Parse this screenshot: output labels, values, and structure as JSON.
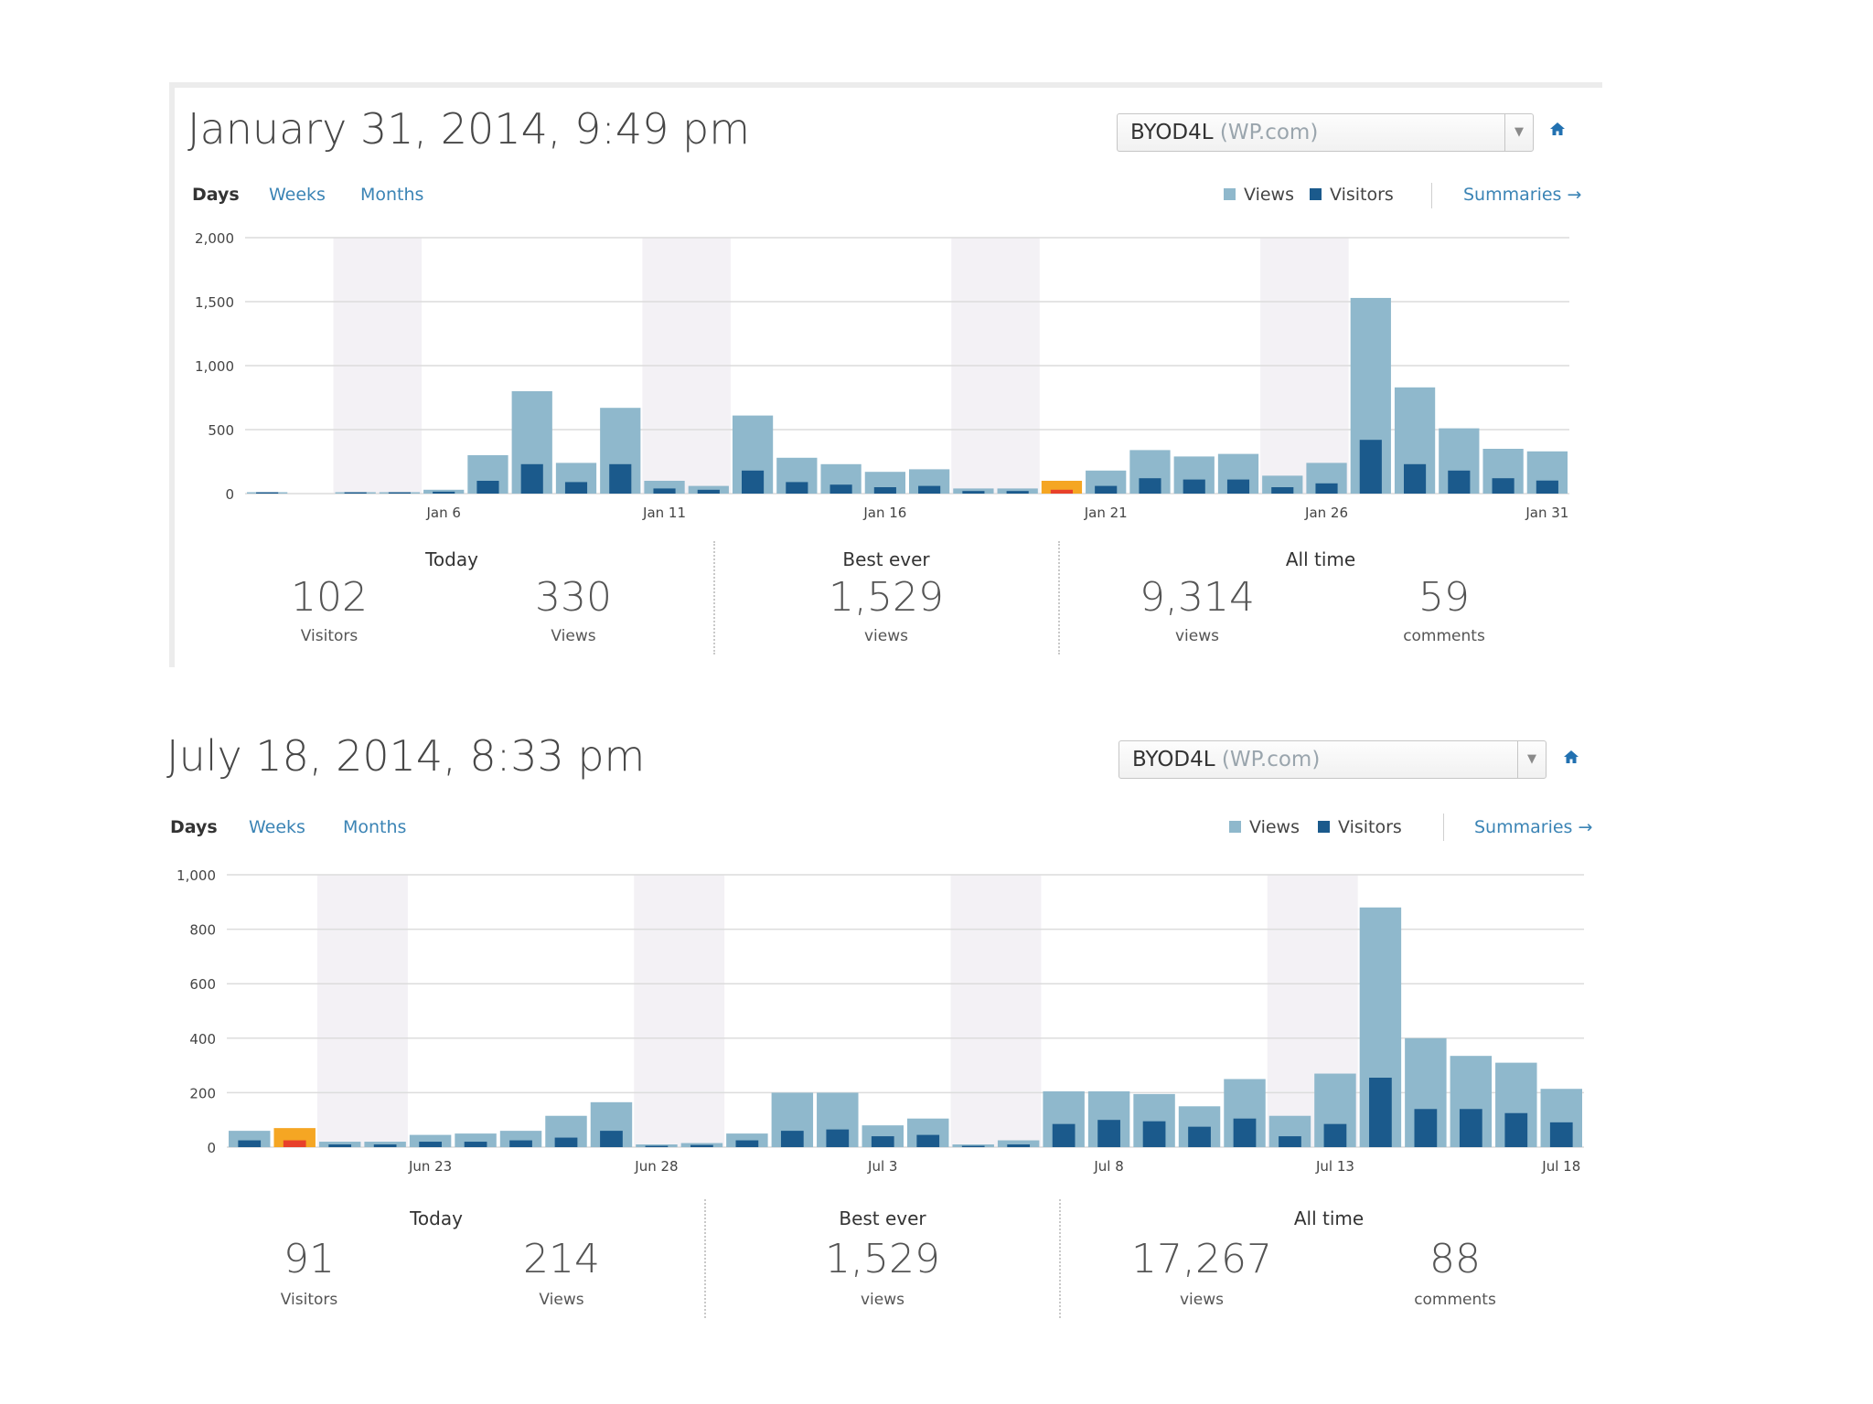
{
  "colors": {
    "views": "#8fb8cc",
    "visitors": "#1b5a8c",
    "highlight_views": "#f5a623",
    "highlight_visitors": "#e8402a",
    "weekend": "#f3f1f5",
    "grid": "#dcdcdc"
  },
  "panels": [
    {
      "title": "January 31, 2014, 9:49 pm",
      "site_select": {
        "name": "BYOD4L",
        "suffix": "(WP.com)"
      },
      "home_icon": "home-icon",
      "tabs": [
        "Days",
        "Weeks",
        "Months"
      ],
      "legend": {
        "views": "Views",
        "visitors": "Visitors"
      },
      "summaries": "Summaries",
      "chart_data": {
        "type": "bar",
        "title": "",
        "ylim": [
          0,
          2000
        ],
        "yticks": [
          "2,000",
          "1,500",
          "1,000",
          "500",
          "0"
        ],
        "ytick_values": [
          2000,
          1500,
          1000,
          500,
          0
        ],
        "xlabels": [
          {
            "idx": 4,
            "label": "Jan 6"
          },
          {
            "idx": 9,
            "label": "Jan 11"
          },
          {
            "idx": 14,
            "label": "Jan 16"
          },
          {
            "idx": 19,
            "label": "Jan 21"
          },
          {
            "idx": 24,
            "label": "Jan 26"
          },
          {
            "idx": 29,
            "label": "Jan 31"
          }
        ],
        "weekend_starts": [
          2,
          9,
          16,
          23
        ],
        "highlight_index": 18,
        "categories": [
          "Jan 2",
          "Jan 3",
          "Jan 4",
          "Jan 5",
          "Jan 6",
          "Jan 7",
          "Jan 8",
          "Jan 9",
          "Jan 10",
          "Jan 11",
          "Jan 12",
          "Jan 13",
          "Jan 14",
          "Jan 15",
          "Jan 16",
          "Jan 17",
          "Jan 18",
          "Jan 19",
          "Jan 20",
          "Jan 21",
          "Jan 22",
          "Jan 23",
          "Jan 24",
          "Jan 25",
          "Jan 26",
          "Jan 27",
          "Jan 28",
          "Jan 29",
          "Jan 30",
          "Jan 31"
        ],
        "series": [
          {
            "name": "Views",
            "values": [
              10,
              0,
              5,
              10,
              30,
              300,
              800,
              240,
              670,
              100,
              60,
              610,
              280,
              230,
              170,
              190,
              40,
              40,
              100,
              180,
              340,
              290,
              310,
              140,
              240,
              1529,
              830,
              510,
              350,
              330
            ]
          },
          {
            "name": "Visitors",
            "values": [
              5,
              0,
              2,
              5,
              15,
              100,
              230,
              90,
              230,
              40,
              30,
              180,
              90,
              70,
              50,
              60,
              20,
              20,
              30,
              60,
              120,
              110,
              110,
              50,
              80,
              420,
              230,
              180,
              120,
              102
            ]
          }
        ]
      },
      "stats": {
        "today": {
          "heading": "Today",
          "visitors": "102",
          "visitors_label": "Visitors",
          "views": "330",
          "views_label": "Views"
        },
        "best": {
          "heading": "Best ever",
          "views": "1,529",
          "views_label": "views"
        },
        "all": {
          "heading": "All time",
          "views": "9,314",
          "views_label": "views",
          "comments": "59",
          "comments_label": "comments"
        }
      }
    },
    {
      "title": "July 18, 2014, 8:33 pm",
      "site_select": {
        "name": "BYOD4L",
        "suffix": "(WP.com)"
      },
      "home_icon": "home-icon",
      "tabs": [
        "Days",
        "Weeks",
        "Months"
      ],
      "legend": {
        "views": "Views",
        "visitors": "Visitors"
      },
      "summaries": "Summaries",
      "chart_data": {
        "type": "bar",
        "title": "",
        "ylim": [
          0,
          1000
        ],
        "yticks": [
          "1,000",
          "800",
          "600",
          "400",
          "200",
          "0"
        ],
        "ytick_values": [
          1000,
          800,
          600,
          400,
          200,
          0
        ],
        "xlabels": [
          {
            "idx": 4,
            "label": "Jun 23"
          },
          {
            "idx": 9,
            "label": "Jun 28"
          },
          {
            "idx": 14,
            "label": "Jul 3"
          },
          {
            "idx": 19,
            "label": "Jul 8"
          },
          {
            "idx": 24,
            "label": "Jul 13"
          },
          {
            "idx": 29,
            "label": "Jul 18"
          }
        ],
        "weekend_starts": [
          2,
          9,
          16,
          23
        ],
        "highlight_index": 1,
        "categories": [
          "Jun 19",
          "Jun 20",
          "Jun 21",
          "Jun 22",
          "Jun 23",
          "Jun 24",
          "Jun 25",
          "Jun 26",
          "Jun 27",
          "Jun 28",
          "Jun 29",
          "Jun 30",
          "Jul 1",
          "Jul 2",
          "Jul 3",
          "Jul 4",
          "Jul 5",
          "Jul 6",
          "Jul 7",
          "Jul 8",
          "Jul 9",
          "Jul 10",
          "Jul 11",
          "Jul 12",
          "Jul 13",
          "Jul 14",
          "Jul 15",
          "Jul 16",
          "Jul 17",
          "Jul 18"
        ],
        "series": [
          {
            "name": "Views",
            "values": [
              60,
              70,
              20,
              20,
              45,
              50,
              60,
              115,
              165,
              10,
              15,
              50,
              200,
              200,
              80,
              105,
              10,
              25,
              205,
              205,
              195,
              150,
              250,
              115,
              270,
              880,
              400,
              335,
              310,
              214
            ]
          },
          {
            "name": "Visitors",
            "values": [
              25,
              25,
              10,
              10,
              20,
              20,
              25,
              35,
              60,
              5,
              8,
              25,
              60,
              65,
              40,
              45,
              5,
              10,
              85,
              100,
              95,
              75,
              105,
              40,
              85,
              255,
              140,
              140,
              125,
              91
            ]
          }
        ]
      },
      "stats": {
        "today": {
          "heading": "Today",
          "visitors": "91",
          "visitors_label": "Visitors",
          "views": "214",
          "views_label": "Views"
        },
        "best": {
          "heading": "Best ever",
          "views": "1,529",
          "views_label": "views"
        },
        "all": {
          "heading": "All time",
          "views": "17,267",
          "views_label": "views",
          "comments": "88",
          "comments_label": "comments"
        }
      }
    }
  ]
}
